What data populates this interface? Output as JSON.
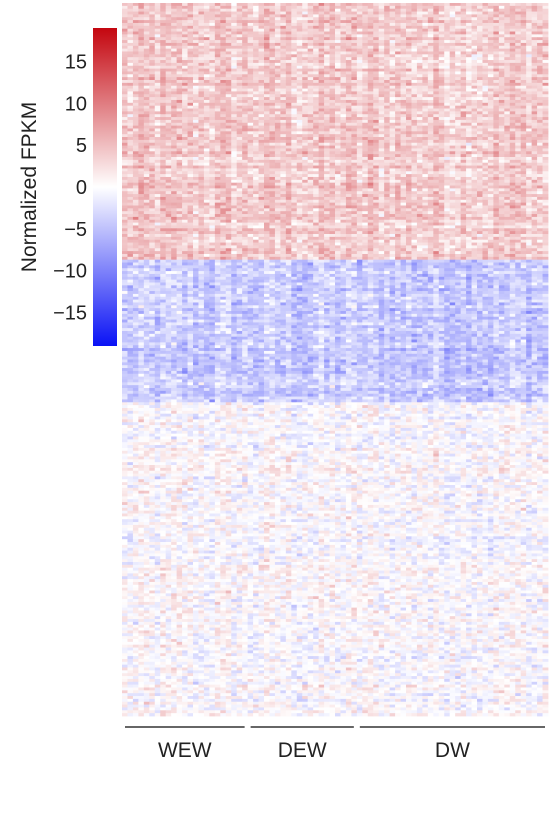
{
  "chart_data": {
    "type": "heatmap",
    "colorbar": {
      "label": "Normalized FPKM",
      "ticks": [
        15,
        10,
        5,
        0,
        -5,
        -10,
        -15
      ],
      "range": [
        -19,
        19
      ],
      "colors": {
        "high": "#c4060f",
        "mid": "#ffffff",
        "low": "#0a12f5"
      }
    },
    "groups": [
      {
        "label": "WEW",
        "samples": 23
      },
      {
        "label": "DEW",
        "samples": 20
      },
      {
        "label": "DW",
        "samples": 35
      }
    ],
    "row_blocks": [
      {
        "name": "block1",
        "rows": 90,
        "pattern": "mostly positive (red)",
        "mean": 4
      },
      {
        "name": "block2",
        "rows": 50,
        "pattern": "mostly negative (blue)",
        "mean": -4
      },
      {
        "name": "block3",
        "rows": 110,
        "pattern": "mixed, near zero",
        "mean": 0
      }
    ]
  }
}
